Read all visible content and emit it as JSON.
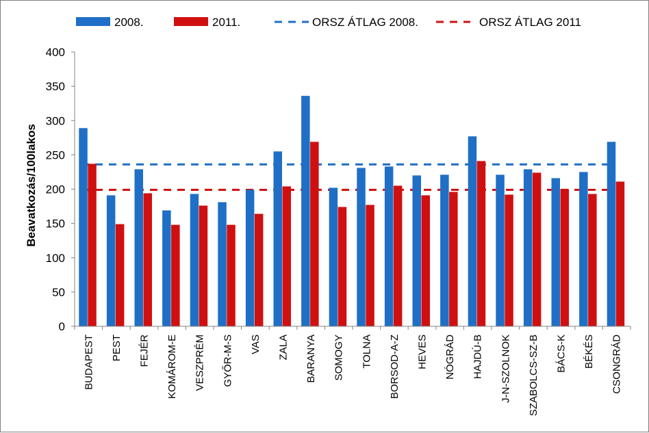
{
  "chart_data": {
    "type": "bar",
    "title": "",
    "xlabel": "",
    "ylabel": "Beavatkozás/100lakos",
    "ylim": [
      0,
      400
    ],
    "yticks": [
      0,
      50,
      100,
      150,
      200,
      250,
      300,
      350,
      400
    ],
    "grid": false,
    "legend_position": "top",
    "categories": [
      "BUDAPEST",
      "PEST",
      "FEJÉR",
      "KOMÁROM-E",
      "VESZPRÉM",
      "GYŐR-M-S",
      "VAS",
      "ZALA",
      "BARANYA",
      "SOMOGY",
      "TOLNA",
      "BORSOD-A-Z",
      "HEVES",
      "NÓGRÁD",
      "HAJDÚ-B",
      "J-N-SZOLNOK",
      "SZABOLCS-SZ-B",
      "BÁCS-K",
      "BÉKÉS",
      "CSONGRÁD"
    ],
    "series": [
      {
        "name": "2008.",
        "color": "#1f6fc6",
        "values": [
          289,
          191,
          229,
          169,
          193,
          181,
          199,
          255,
          336,
          202,
          231,
          233,
          220,
          221,
          277,
          221,
          229,
          216,
          225,
          269
        ]
      },
      {
        "name": "2011.",
        "color": "#d01010",
        "values": [
          237,
          149,
          194,
          148,
          176,
          148,
          164,
          204,
          269,
          174,
          177,
          205,
          191,
          196,
          241,
          192,
          224,
          200,
          193,
          211
        ]
      }
    ],
    "reference_lines": [
      {
        "name": "ORSZ ÁTLAG 2008.",
        "value": 236,
        "color": "#1f6fc6",
        "style": "dashed"
      },
      {
        "name": "ORSZ ÁTLAG 2011",
        "value": 199,
        "color": "#d01010",
        "style": "dashed"
      }
    ]
  }
}
